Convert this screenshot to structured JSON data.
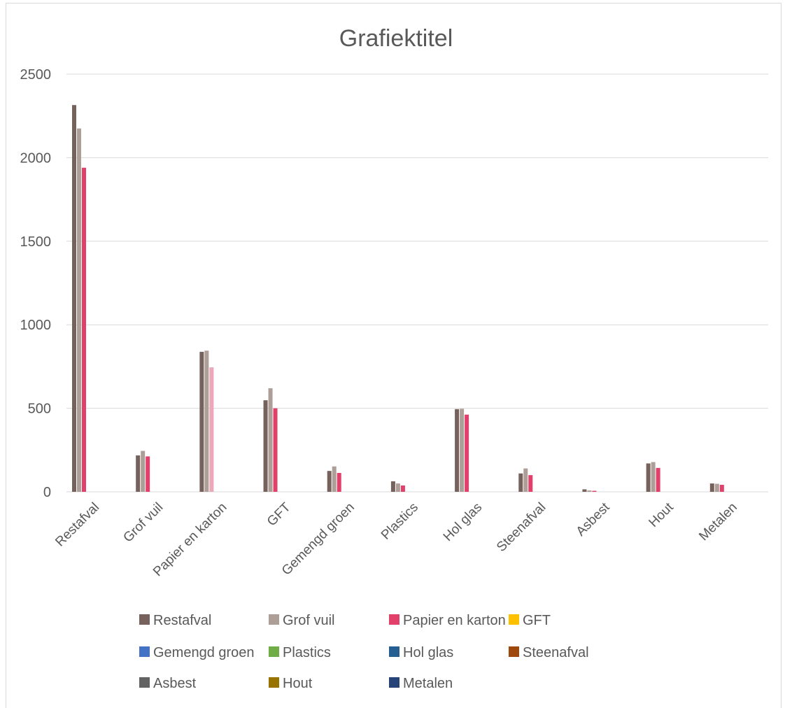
{
  "chart_data": {
    "type": "bar",
    "title": "Grafiektitel",
    "xlabel": "",
    "ylabel": "",
    "ylim": [
      0,
      2500
    ],
    "yticks": [
      0,
      500,
      1000,
      1500,
      2000,
      2500
    ],
    "grid": true,
    "legend_position": "bottom",
    "categories": [
      "Restafval",
      "Grof vuil",
      "Papier en karton",
      "GFT",
      "Gemengd groen",
      "Plastics",
      "Hol glas",
      "Steenafval",
      "Asbest",
      "Hout",
      "Metalen"
    ],
    "bar_series_colors": [
      "#76625c",
      "#ad9e98",
      "#e0406a"
    ],
    "highlight": {
      "category": "Papier en karton",
      "series": 2,
      "color": "#eba8b9"
    },
    "bar_values": [
      [
        2315,
        2175,
        1940
      ],
      [
        218,
        245,
        212
      ],
      [
        838,
        845,
        745
      ],
      [
        548,
        620,
        500
      ],
      [
        125,
        152,
        113
      ],
      [
        63,
        50,
        38
      ],
      [
        495,
        497,
        462
      ],
      [
        110,
        140,
        100
      ],
      [
        15,
        8,
        6
      ],
      [
        170,
        178,
        143
      ],
      [
        50,
        48,
        42
      ]
    ],
    "legend": [
      {
        "label": "Restafval",
        "color": "#76625c"
      },
      {
        "label": "Grof vuil",
        "color": "#ad9e98"
      },
      {
        "label": "Papier en karton",
        "color": "#e0406a"
      },
      {
        "label": "GFT",
        "color": "#ffc000"
      },
      {
        "label": "Gemengd groen",
        "color": "#4472c4"
      },
      {
        "label": "Plastics",
        "color": "#70ad47"
      },
      {
        "label": "Hol glas",
        "color": "#255e91"
      },
      {
        "label": "Steenafval",
        "color": "#9e480e"
      },
      {
        "label": "Asbest",
        "color": "#636363"
      },
      {
        "label": "Hout",
        "color": "#997300"
      },
      {
        "label": "Metalen",
        "color": "#264478"
      }
    ]
  }
}
